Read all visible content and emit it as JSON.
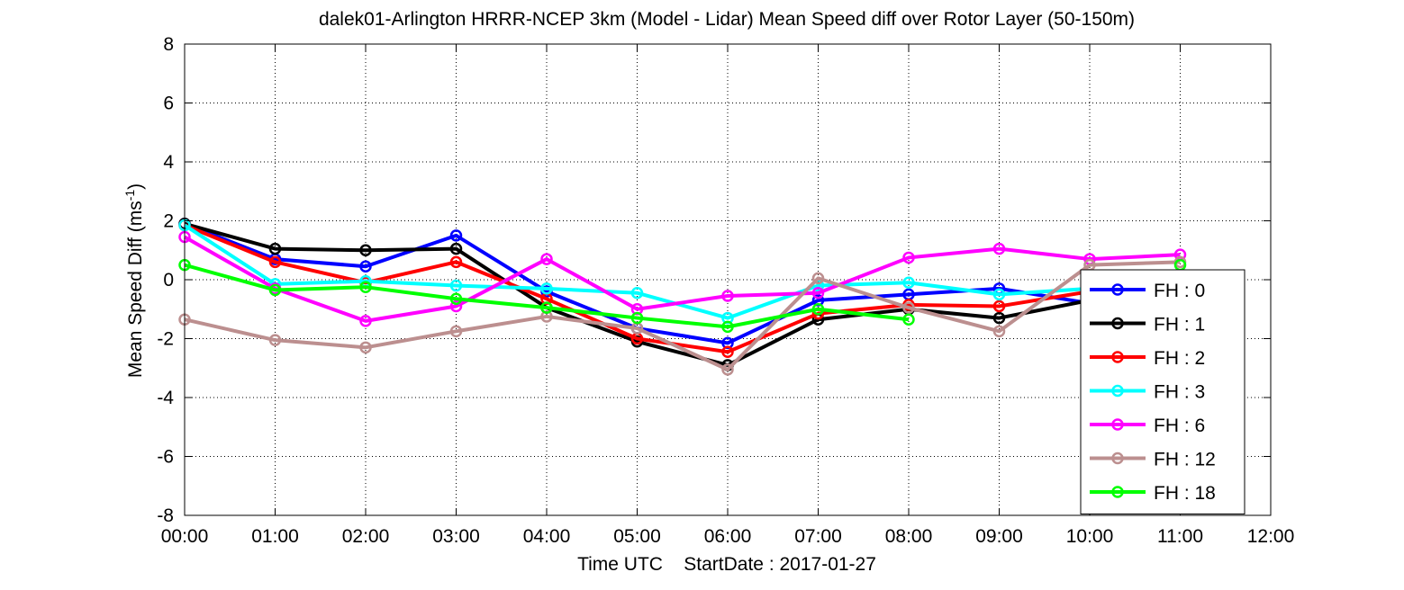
{
  "chart_data": {
    "type": "line",
    "title": "dalek01-Arlington HRRR-NCEP 3km (Model - Lidar) Mean Speed diff over Rotor Layer (50-150m)",
    "xlabel": "Time UTC    StartDate : 2017-01-27",
    "ylabel_main": "Mean Speed Diff (ms",
    "ylabel_sup": "-1",
    "ylabel_tail": ")",
    "xlim": [
      0,
      12
    ],
    "ylim": [
      -8,
      8
    ],
    "grid": true,
    "legend_position": "right",
    "x_tick_values": [
      0,
      1,
      2,
      3,
      4,
      5,
      6,
      7,
      8,
      9,
      10,
      11,
      12
    ],
    "x_tick_labels": [
      "00:00",
      "01:00",
      "02:00",
      "03:00",
      "04:00",
      "05:00",
      "06:00",
      "07:00",
      "08:00",
      "09:00",
      "10:00",
      "11:00",
      "12:00"
    ],
    "y_tick_values": [
      -8,
      -6,
      -4,
      -2,
      0,
      2,
      4,
      6,
      8
    ],
    "y_tick_labels": [
      "-8",
      "-6",
      "-4",
      "-2",
      "0",
      "2",
      "4",
      "6",
      "8"
    ],
    "x": [
      0,
      1,
      2,
      3,
      4,
      5,
      6,
      7,
      8,
      9,
      10,
      11
    ],
    "series": [
      {
        "name": "FH : 0",
        "color": "#0000ff",
        "values": [
          1.9,
          0.7,
          0.45,
          1.5,
          -0.4,
          -1.65,
          -2.15,
          -0.7,
          -0.5,
          -0.3,
          -0.8,
          null
        ]
      },
      {
        "name": "FH : 1",
        "color": "#000000",
        "values": [
          1.9,
          1.05,
          1.0,
          1.05,
          -0.95,
          -2.1,
          -2.9,
          -1.35,
          -1.0,
          -1.3,
          -0.7,
          null
        ]
      },
      {
        "name": "FH : 2",
        "color": "#ff0000",
        "values": [
          1.85,
          0.6,
          -0.1,
          0.6,
          -0.65,
          -2.0,
          -2.45,
          -1.15,
          -0.85,
          -0.9,
          -0.4,
          null
        ]
      },
      {
        "name": "FH : 3",
        "color": "#00ffff",
        "values": [
          1.85,
          -0.15,
          -0.05,
          -0.2,
          -0.3,
          -0.45,
          -1.3,
          -0.2,
          -0.1,
          -0.5,
          -0.3,
          null
        ]
      },
      {
        "name": "FH : 6",
        "color": "#ff00ff",
        "values": [
          1.45,
          -0.3,
          -1.4,
          -0.9,
          0.7,
          -1.0,
          -0.55,
          -0.45,
          0.75,
          1.05,
          0.7,
          0.85
        ]
      },
      {
        "name": "FH : 12",
        "color": "#bc8f8f",
        "values": [
          -1.35,
          -2.05,
          -2.3,
          -1.75,
          -1.25,
          -1.65,
          -3.05,
          0.05,
          -0.95,
          -1.75,
          0.5,
          0.6
        ]
      },
      {
        "name": "FH : 18",
        "color": "#00ff00",
        "values": [
          0.5,
          -0.35,
          -0.25,
          -0.65,
          -0.95,
          -1.3,
          -1.6,
          -1.0,
          -1.35,
          null,
          null,
          0.5
        ]
      }
    ]
  }
}
